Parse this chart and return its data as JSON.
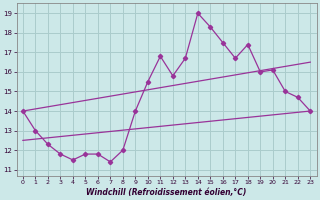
{
  "x": [
    0,
    1,
    2,
    3,
    4,
    5,
    6,
    7,
    8,
    9,
    10,
    11,
    12,
    13,
    14,
    15,
    16,
    17,
    18,
    19,
    20,
    21,
    22,
    23
  ],
  "y_main": [
    14.0,
    13.0,
    12.3,
    11.8,
    11.5,
    11.8,
    11.8,
    11.4,
    12.0,
    14.0,
    15.5,
    16.8,
    15.8,
    16.7,
    19.0,
    18.3,
    17.5,
    16.7,
    17.4,
    16.0,
    16.1,
    15.0,
    14.7,
    14.0
  ],
  "upper_line": [
    14.0,
    16.5
  ],
  "lower_line": [
    12.5,
    14.0
  ],
  "line_color": "#993399",
  "bg_color": "#cce8e8",
  "grid_color": "#aacccc",
  "xlabel": "Windchill (Refroidissement éolien,°C)",
  "yticks": [
    11,
    12,
    13,
    14,
    15,
    16,
    17,
    18,
    19
  ],
  "xticks": [
    0,
    1,
    2,
    3,
    4,
    5,
    6,
    7,
    8,
    9,
    10,
    11,
    12,
    13,
    14,
    15,
    16,
    17,
    18,
    19,
    20,
    21,
    22,
    23
  ],
  "ylim": [
    10.7,
    19.5
  ],
  "xlim": [
    -0.5,
    23.5
  ]
}
